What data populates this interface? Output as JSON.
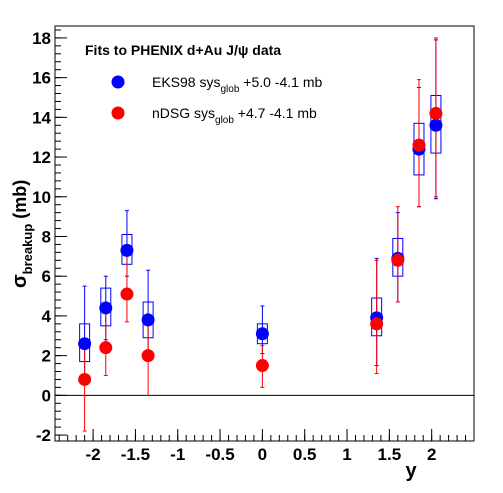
{
  "chart_data": {
    "type": "scatter",
    "title": "Fits to PHENIX d+Au J/ψ data",
    "xlabel": "y",
    "ylabel": {
      "main": "σ",
      "sub": "breakup",
      "unit": "(mb)"
    },
    "xlim": [
      -2.45,
      2.5
    ],
    "ylim": [
      -2.3,
      18.6
    ],
    "x_ticks": [
      -2,
      -1.5,
      -1,
      -0.5,
      0,
      0.5,
      1,
      1.5,
      2
    ],
    "x_tick_labels": [
      "-2",
      "-1.5",
      "-1",
      "-0.5",
      "0",
      "0.5",
      "1",
      "1.5",
      "2"
    ],
    "y_ticks": [
      -2,
      0,
      2,
      4,
      6,
      8,
      10,
      12,
      14,
      16,
      18
    ],
    "y_tick_labels": [
      "-2",
      "0",
      "2",
      "4",
      "6",
      "8",
      "10",
      "12",
      "14",
      "16",
      "18"
    ],
    "zero_line": 0,
    "grid": false,
    "legend_position": "top-left",
    "series": [
      {
        "name_parts": {
          "main": "EKS98 sys",
          "sub": "glob",
          "rest": " +5.0 -4.1 mb"
        },
        "color": "#0000ff",
        "x": [
          -2.1,
          -1.85,
          -1.6,
          -1.35,
          0.0,
          1.35,
          1.6,
          1.85,
          2.05
        ],
        "y": [
          2.6,
          4.4,
          7.3,
          3.8,
          3.1,
          3.9,
          6.9,
          12.4,
          13.6
        ],
        "err_lo": [
          1.7,
          1.6,
          1.3,
          2.0,
          1.0,
          2.4,
          2.2,
          2.9,
          3.7
        ],
        "err_hi": [
          2.9,
          1.6,
          2.0,
          2.5,
          1.4,
          3.0,
          2.3,
          3.1,
          4.3
        ],
        "sys_lo": [
          0.9,
          0.9,
          0.7,
          0.9,
          0.5,
          0.9,
          0.9,
          1.3,
          1.4
        ],
        "sys_hi": [
          1.0,
          1.0,
          0.8,
          0.9,
          0.5,
          1.0,
          1.0,
          1.3,
          1.5
        ]
      },
      {
        "name_parts": {
          "main": "nDSG sys",
          "sub": "glob",
          "rest": " +4.7 -4.1 mb"
        },
        "color": "#ff0000",
        "x": [
          -2.1,
          -1.85,
          -1.6,
          -1.35,
          0.0,
          1.35,
          1.6,
          1.85,
          2.05
        ],
        "y": [
          0.8,
          2.4,
          5.1,
          2.0,
          1.5,
          3.6,
          6.8,
          12.6,
          14.2
        ],
        "err_lo": [
          2.6,
          1.4,
          1.4,
          2.0,
          1.1,
          2.5,
          2.1,
          3.1,
          4.2
        ],
        "err_hi": [
          1.6,
          2.0,
          2.0,
          2.0,
          1.0,
          3.2,
          2.7,
          3.3,
          3.8
        ]
      }
    ]
  }
}
